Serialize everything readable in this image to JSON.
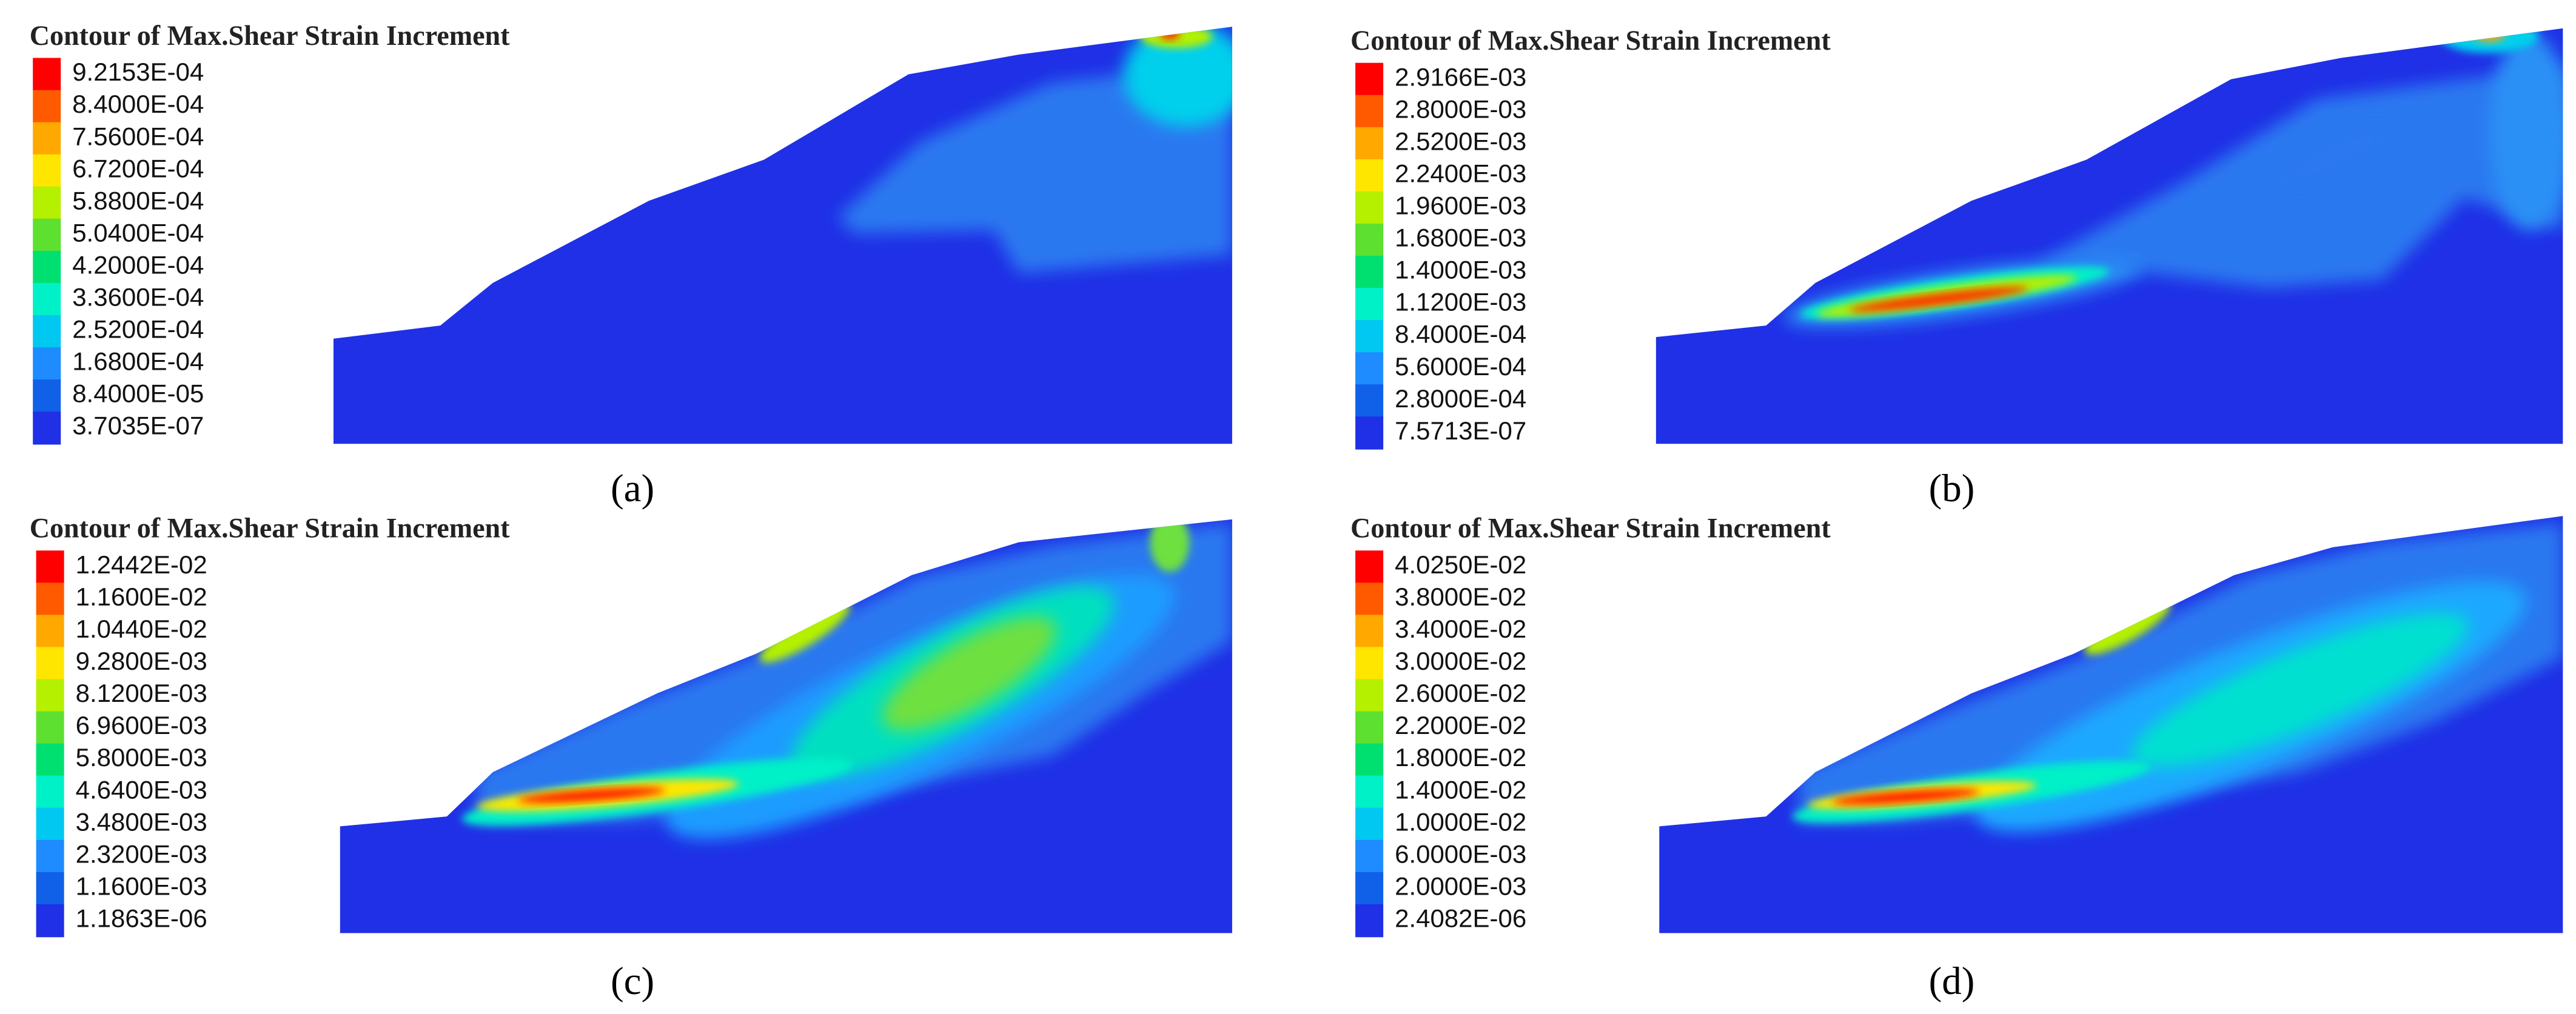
{
  "panels": [
    {
      "title": "Contour of Max.Shear Strain Increment",
      "caption": "(a)",
      "legend": [
        "9.2153E-04",
        "8.4000E-04",
        "7.5600E-04",
        "6.7200E-04",
        "5.8800E-04",
        "5.0400E-04",
        "4.2000E-04",
        "3.3600E-04",
        "2.5200E-04",
        "1.6800E-04",
        "8.4000E-05",
        "3.7035E-07"
      ]
    },
    {
      "title": "Contour of Max.Shear Strain Increment",
      "caption": "(b)",
      "legend": [
        "2.9166E-03",
        "2.8000E-03",
        "2.5200E-03",
        "2.2400E-03",
        "1.9600E-03",
        "1.6800E-03",
        "1.4000E-03",
        "1.1200E-03",
        "8.4000E-04",
        "5.6000E-04",
        "2.8000E-04",
        "7.5713E-07"
      ]
    },
    {
      "title": "Contour of Max.Shear Strain Increment",
      "caption": "(c)",
      "legend": [
        "1.2442E-02",
        "1.1600E-02",
        "1.0440E-02",
        "9.2800E-03",
        "8.1200E-03",
        "6.9600E-03",
        "5.8000E-03",
        "4.6400E-03",
        "3.4800E-03",
        "2.3200E-03",
        "1.1600E-03",
        "1.1863E-06"
      ]
    },
    {
      "title": "Contour of Max.Shear Strain Increment",
      "caption": "(d)",
      "legend": [
        "4.0250E-02",
        "3.8000E-02",
        "3.4000E-02",
        "3.0000E-02",
        "2.6000E-02",
        "2.2000E-02",
        "1.8000E-02",
        "1.4000E-02",
        "1.0000E-02",
        "6.0000E-03",
        "2.0000E-03",
        "2.4082E-06"
      ]
    }
  ]
}
